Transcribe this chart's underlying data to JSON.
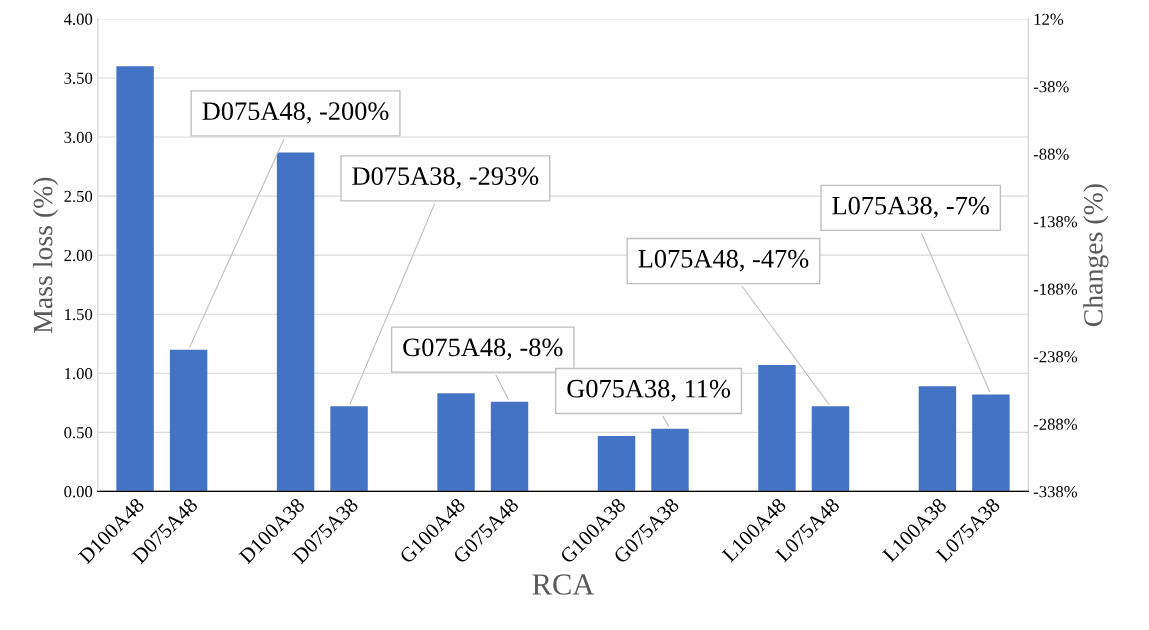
{
  "chart_data": {
    "type": "bar",
    "categories": [
      "D100A48",
      "D075A48",
      null,
      "D100A38",
      "D075A38",
      null,
      "G100A48",
      "G075A48",
      null,
      "G100A38",
      "G075A38",
      null,
      "L100A48",
      "L075A48",
      null,
      "L100A38",
      "L075A38"
    ],
    "values": [
      3.6,
      1.2,
      null,
      2.87,
      0.72,
      null,
      0.83,
      0.76,
      null,
      0.47,
      0.53,
      null,
      1.07,
      0.72,
      null,
      0.89,
      0.82
    ],
    "color": "#4472c4",
    "xlabel": "RCA",
    "ylabel": "Mass loss (%)",
    "y2label": "Changes (%)",
    "ylim": [
      0,
      4
    ],
    "yticks": [
      {
        "value": 0,
        "label": "0.00"
      },
      {
        "value": 0.5,
        "label": "0.50"
      },
      {
        "value": 1,
        "label": "1.00"
      },
      {
        "value": 1.5,
        "label": "1.50"
      },
      {
        "value": 2,
        "label": "2.00"
      },
      {
        "value": 2.5,
        "label": "2.50"
      },
      {
        "value": 3,
        "label": "3.00"
      },
      {
        "value": 3.5,
        "label": "3.50"
      },
      {
        "value": 4,
        "label": "4.00"
      }
    ],
    "y2lim": [
      -338,
      12
    ],
    "y2ticks": [
      {
        "value": -338,
        "label": "-338%"
      },
      {
        "value": -288,
        "label": "-288%"
      },
      {
        "value": -238,
        "label": "-238%"
      },
      {
        "value": -188,
        "label": "-188%"
      },
      {
        "value": -138,
        "label": "-138%"
      },
      {
        "value": -88,
        "label": "-88%"
      },
      {
        "value": -38,
        "label": "-38%"
      },
      {
        "value": 12,
        "label": "12%"
      }
    ],
    "grid": "y",
    "annotations": [
      {
        "text": "D075A48, -200%",
        "x": "D075A48",
        "y": 1.2
      },
      {
        "text": "D075A38, -293%",
        "x": "D075A38",
        "y": 0.72
      },
      {
        "text": "G075A48, -8%",
        "x": "G075A48",
        "y": 0.76
      },
      {
        "text": "G075A38, 11%",
        "x": "G075A38",
        "y": 0.53
      },
      {
        "text": "L075A48, -47%",
        "x": "L075A48",
        "y": 0.72
      },
      {
        "text": "L075A38, -7%",
        "x": "L075A38",
        "y": 0.82
      }
    ]
  }
}
